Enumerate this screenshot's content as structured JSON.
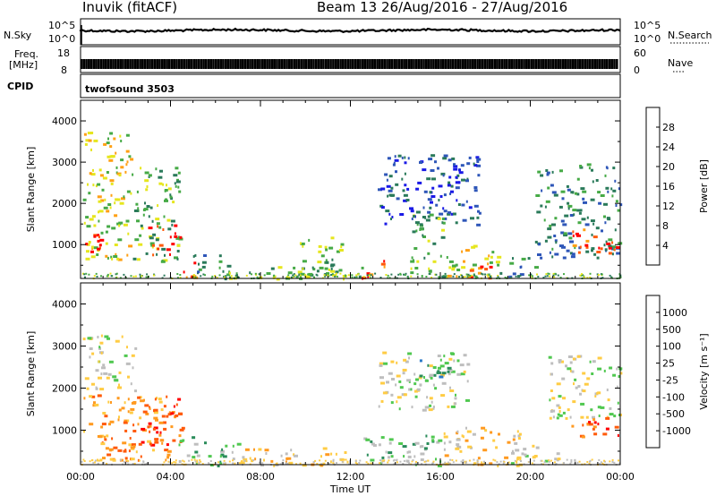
{
  "header": {
    "station": "Inuvik (fitACF)",
    "beam_range": "Beam 13 26/Aug/2016 - 27/Aug/2016"
  },
  "strip_nsky": {
    "left_label": "N.Sky",
    "right_label": "N.Search",
    "left_ticks": [
      "10^5",
      "10^0"
    ],
    "right_ticks": [
      "10^5",
      "10^0"
    ]
  },
  "strip_freq": {
    "left_label_line1": "Freq.",
    "left_label_line2": "[MHz]",
    "right_label": "Nave",
    "left_ticks": [
      "18",
      "8"
    ],
    "right_ticks": [
      "60",
      "0"
    ]
  },
  "strip_cpid": {
    "left_label": "CPID",
    "program": "twofsound 3503"
  },
  "chart_data": [
    {
      "type": "heatmap",
      "quantity": "power",
      "ylabel": "Slant Range [km]",
      "ylim": [
        180,
        4500
      ],
      "yticks": [
        1000,
        2000,
        3000,
        4000
      ],
      "xlim": [
        0,
        24
      ],
      "colorbar": {
        "label": "Power [dB]",
        "ticks": [
          "4",
          "8",
          "12",
          "16",
          "20",
          "24",
          "28"
        ],
        "colors": [
          "#1a1ae6",
          "#2e56b8",
          "#2a7a5a",
          "#46aa46",
          "#e6e61e",
          "#ffa014",
          "#ff5a0a",
          "#ff0000"
        ]
      },
      "regions": [
        {
          "t0": 0.1,
          "t1": 2.2,
          "r0": 600,
          "r1": 3800,
          "level": 4
        },
        {
          "t0": 0.2,
          "t1": 1.2,
          "r0": 600,
          "r1": 1400,
          "level": 7
        },
        {
          "t0": 2.2,
          "t1": 4.4,
          "r0": 600,
          "r1": 2900,
          "level": 3
        },
        {
          "t0": 3.0,
          "t1": 4.4,
          "r0": 700,
          "r1": 1500,
          "level": 7
        },
        {
          "t0": 4.2,
          "t1": 5.2,
          "r0": 180,
          "r1": 600,
          "level": 6
        },
        {
          "t0": 5.0,
          "t1": 6.6,
          "r0": 180,
          "r1": 800,
          "level": 2
        },
        {
          "t0": 6.5,
          "t1": 12.5,
          "r0": 180,
          "r1": 500,
          "level": 3
        },
        {
          "t0": 9.6,
          "t1": 11.6,
          "r0": 200,
          "r1": 1200,
          "level": 3
        },
        {
          "t0": 12.5,
          "t1": 13.5,
          "r0": 180,
          "r1": 700,
          "level": 6
        },
        {
          "t0": 13.2,
          "t1": 17.8,
          "r0": 1500,
          "r1": 3200,
          "level": 1
        },
        {
          "t0": 14.5,
          "t1": 16.2,
          "r0": 180,
          "r1": 1800,
          "level": 3
        },
        {
          "t0": 16.2,
          "t1": 18.6,
          "r0": 200,
          "r1": 1000,
          "level": 4
        },
        {
          "t0": 17.2,
          "t1": 18.2,
          "r0": 180,
          "r1": 500,
          "level": 7
        },
        {
          "t0": 18.6,
          "t1": 20.2,
          "r0": 180,
          "r1": 700,
          "level": 2
        },
        {
          "t0": 20.2,
          "t1": 24.0,
          "r0": 700,
          "r1": 3000,
          "level": 2
        },
        {
          "t0": 21.8,
          "t1": 24.0,
          "r0": 800,
          "r1": 1400,
          "level": 6
        }
      ]
    },
    {
      "type": "heatmap",
      "quantity": "velocity",
      "ylabel": "Slant Range [km]",
      "ylim": [
        180,
        4500
      ],
      "yticks": [
        1000,
        2000,
        3000,
        4000
      ],
      "xlim": [
        0,
        24
      ],
      "xticks": [
        "00:00",
        "04:00",
        "08:00",
        "12:00",
        "16:00",
        "20:00",
        "00:00"
      ],
      "xlabel": "Time UT",
      "colorbar": {
        "label": "Velocity [m s⁻¹]",
        "ticks": [
          "1000",
          "500",
          "100",
          "25",
          "-25",
          "-100",
          "-500",
          "-1000"
        ],
        "colors": [
          "#1e3ca0",
          "#2878c8",
          "#2a8c5a",
          "#50c850",
          "#bebebe",
          "#ffcc44",
          "#ff9a20",
          "#ff5a0a",
          "#ff0000"
        ]
      },
      "regions": [
        {
          "t0": 0.1,
          "t1": 2.4,
          "r0": 1900,
          "r1": 3300,
          "level": 4
        },
        {
          "t0": 0.1,
          "t1": 4.0,
          "r0": 300,
          "r1": 1900,
          "level": 6
        },
        {
          "t0": 2.2,
          "t1": 4.5,
          "r0": 600,
          "r1": 1800,
          "level": 7
        },
        {
          "t0": 4.0,
          "t1": 7.0,
          "r0": 180,
          "r1": 900,
          "level": 3
        },
        {
          "t0": 7.0,
          "t1": 12.5,
          "r0": 180,
          "r1": 600,
          "level": 5
        },
        {
          "t0": 13.2,
          "t1": 17.2,
          "r0": 1500,
          "r1": 2900,
          "level": 4
        },
        {
          "t0": 15.0,
          "t1": 16.6,
          "r0": 2200,
          "r1": 2700,
          "level": 2
        },
        {
          "t0": 12.5,
          "t1": 16.0,
          "r0": 180,
          "r1": 900,
          "level": 3
        },
        {
          "t0": 16.0,
          "t1": 19.5,
          "r0": 180,
          "r1": 1100,
          "level": 5
        },
        {
          "t0": 19.0,
          "t1": 21.2,
          "r0": 180,
          "r1": 700,
          "level": 4
        },
        {
          "t0": 20.8,
          "t1": 24.0,
          "r0": 1300,
          "r1": 2800,
          "level": 4
        },
        {
          "t0": 21.8,
          "t1": 24.0,
          "r0": 850,
          "r1": 1350,
          "level": 7
        }
      ]
    }
  ]
}
